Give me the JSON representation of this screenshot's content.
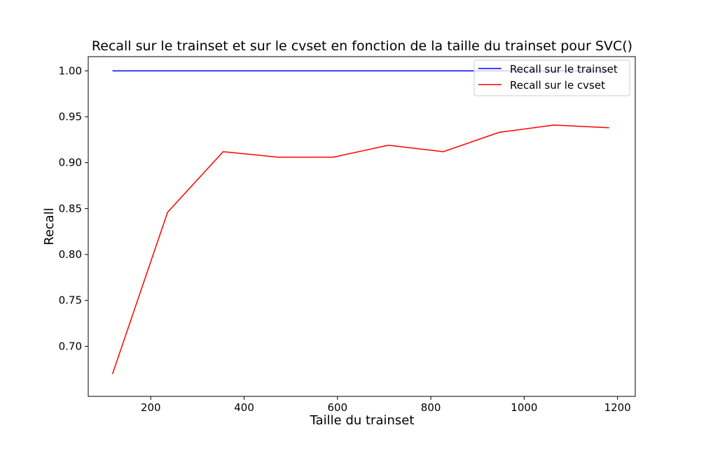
{
  "chart_data": {
    "type": "line",
    "title": "Recall sur le trainset et sur le cvset en fonction de la taille du trainset pour SVC()",
    "xlabel": "Taille du trainset",
    "ylabel": "Recall",
    "xlim": [
      66,
      1238
    ],
    "ylim": [
      0.6455,
      1.0155
    ],
    "xticks": [
      200,
      400,
      600,
      800,
      1000,
      1200
    ],
    "xtick_labels": [
      "200",
      "400",
      "600",
      "800",
      "1000",
      "1200"
    ],
    "yticks": [
      0.7,
      0.75,
      0.8,
      0.85,
      0.9,
      0.95,
      1.0
    ],
    "ytick_labels": [
      "0.70",
      "0.75",
      "0.80",
      "0.85",
      "0.90",
      "0.95",
      "1.00"
    ],
    "grid": false,
    "legend_position": "top-right",
    "x": [
      118,
      236,
      355,
      473,
      591,
      709,
      827,
      946,
      1064,
      1182
    ],
    "series": [
      {
        "name": "Recall sur le trainset",
        "color": "#0000ff",
        "values": [
          1.0,
          1.0,
          1.0,
          1.0,
          1.0,
          1.0,
          1.0,
          1.0,
          1.0,
          1.0
        ]
      },
      {
        "name": "Recall sur le cvset",
        "color": "#ff0000",
        "values": [
          0.67,
          0.846,
          0.912,
          0.906,
          0.906,
          0.919,
          0.912,
          0.933,
          0.941,
          0.938
        ]
      }
    ]
  }
}
